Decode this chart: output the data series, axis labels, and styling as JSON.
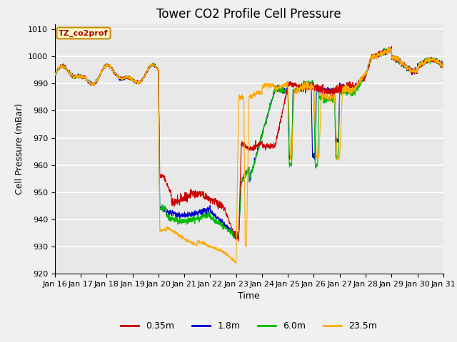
{
  "title": "Tower CO2 Profile Cell Pressure",
  "xlabel": "Time",
  "ylabel": "Cell Pressure (mBar)",
  "ylim": [
    920,
    1012
  ],
  "yticks": [
    920,
    930,
    940,
    950,
    960,
    970,
    980,
    990,
    1000,
    1010
  ],
  "xlim": [
    0,
    15
  ],
  "xtick_labels": [
    "Jan 16",
    "Jan 17",
    "Jan 18",
    "Jan 19",
    "Jan 20",
    "Jan 21",
    "Jan 22",
    "Jan 23",
    "Jan 24",
    "Jan 25",
    "Jan 26",
    "Jan 27",
    "Jan 28",
    "Jan 29",
    "Jan 30",
    "Jan 31"
  ],
  "series_colors": [
    "#cc0000",
    "#0000cc",
    "#00bb00",
    "#ffaa00"
  ],
  "series_labels": [
    "0.35m",
    "1.8m",
    "6.0m",
    "23.5m"
  ],
  "annotation_text": "TZ_co2prof",
  "annotation_bg": "#ffffcc",
  "annotation_border": "#cc8800",
  "plot_bg": "#e8e8e8",
  "grid_color": "#ffffff",
  "title_fontsize": 12,
  "label_fontsize": 9,
  "tick_fontsize": 8
}
